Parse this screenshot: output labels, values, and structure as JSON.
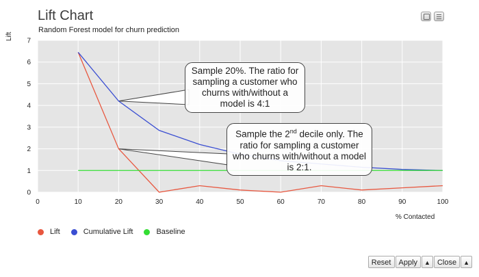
{
  "header": {
    "title": "Lift Chart",
    "subtitle": "Random Forest model for churn prediction",
    "export_icon": "export-icon",
    "print_icon": "print-icon"
  },
  "chart_data": {
    "type": "line",
    "xlabel": "% Contacted",
    "ylabel": "Lift",
    "xlim": [
      0,
      100
    ],
    "ylim": [
      0,
      7
    ],
    "xticks": [
      0,
      10,
      20,
      30,
      40,
      50,
      60,
      70,
      80,
      90,
      100
    ],
    "yticks": [
      0,
      1,
      2,
      3,
      4,
      5,
      6,
      7
    ],
    "grid": true,
    "legend_position": "bottom-left",
    "series": [
      {
        "name": "Lift",
        "color": "#e8573f",
        "x": [
          10,
          20,
          30,
          40,
          50,
          60,
          70,
          80,
          90,
          100
        ],
        "y": [
          6.45,
          2.0,
          0.0,
          0.3,
          0.1,
          0.0,
          0.3,
          0.1,
          0.2,
          0.3
        ]
      },
      {
        "name": "Cumulative Lift",
        "color": "#3a4ed2",
        "x": [
          10,
          20,
          30,
          40,
          50,
          60,
          70,
          80,
          90,
          100
        ],
        "y": [
          6.45,
          4.2,
          2.85,
          2.2,
          1.75,
          1.45,
          1.3,
          1.15,
          1.05,
          1.0
        ]
      },
      {
        "name": "Baseline",
        "color": "#33dd33",
        "x": [
          10,
          100
        ],
        "y": [
          1.0,
          1.0
        ]
      }
    ],
    "annotations": [
      {
        "text_parts": [
          "Sample 20%. The ratio for sampling a customer who churns with/without a model is 4:1"
        ],
        "point": [
          20,
          4.2
        ]
      },
      {
        "text_parts": [
          "Sample the 2",
          "nd",
          " decile only. The ratio for sampling a customer who churns with/without a model is 2:1."
        ],
        "point": [
          20,
          2.0
        ]
      }
    ]
  },
  "footer": {
    "reset_label": "Reset",
    "apply_label": "Apply",
    "up_arrow": "▲",
    "close_label": "Close"
  }
}
